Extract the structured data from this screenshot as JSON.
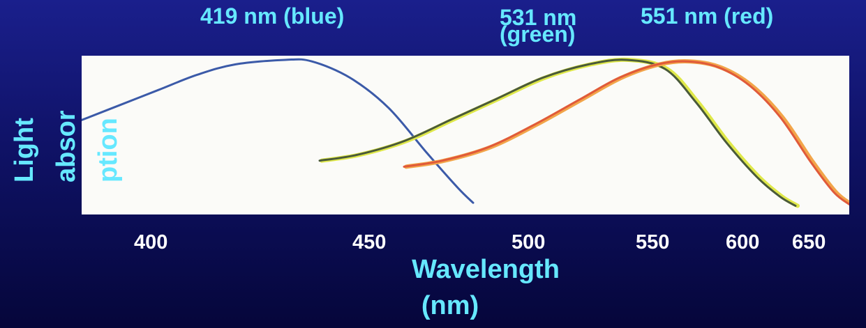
{
  "chart_data": {
    "type": "line",
    "title": "",
    "xlabel_line1": "Wavelength",
    "xlabel_line2": "(nm)",
    "ylabel_line1": "Light",
    "ylabel_line2": "absor",
    "ylabel_line3": "ption",
    "x_ticks": [
      "400",
      "450",
      "500",
      "550",
      "600",
      "650"
    ],
    "peak_labels": {
      "blue": "419 nm (blue)",
      "green_line1": "531 nm",
      "green_line2": "(green)",
      "red": "551 nm (red)"
    },
    "series": [
      {
        "color": "#3b5aa8",
        "peak": 419,
        "points": [
          [
            0.0,
            0.6
          ],
          [
            0.05,
            0.7
          ],
          [
            0.1,
            0.8
          ],
          [
            0.15,
            0.9
          ],
          [
            0.2,
            0.97
          ],
          [
            0.265,
            1.0
          ],
          [
            0.3,
            0.99
          ],
          [
            0.35,
            0.88
          ],
          [
            0.4,
            0.68
          ],
          [
            0.45,
            0.38
          ],
          [
            0.49,
            0.15
          ],
          [
            0.51,
            0.05
          ]
        ]
      },
      {
        "color": "#4a5a3a",
        "peak": 531,
        "points": [
          [
            0.31,
            0.33
          ],
          [
            0.36,
            0.37
          ],
          [
            0.42,
            0.46
          ],
          [
            0.48,
            0.6
          ],
          [
            0.54,
            0.74
          ],
          [
            0.6,
            0.88
          ],
          [
            0.66,
            0.97
          ],
          [
            0.71,
            1.0
          ],
          [
            0.76,
            0.94
          ],
          [
            0.8,
            0.72
          ],
          [
            0.84,
            0.45
          ],
          [
            0.88,
            0.22
          ],
          [
            0.91,
            0.09
          ],
          [
            0.93,
            0.03
          ]
        ],
        "highlight": "#dfe84a"
      },
      {
        "color": "#e05a3a",
        "peak": 551,
        "points": [
          [
            0.42,
            0.29
          ],
          [
            0.47,
            0.33
          ],
          [
            0.53,
            0.42
          ],
          [
            0.59,
            0.57
          ],
          [
            0.65,
            0.74
          ],
          [
            0.7,
            0.88
          ],
          [
            0.75,
            0.97
          ],
          [
            0.79,
            0.99
          ],
          [
            0.83,
            0.95
          ],
          [
            0.87,
            0.83
          ],
          [
            0.91,
            0.62
          ],
          [
            0.95,
            0.32
          ],
          [
            0.98,
            0.12
          ],
          [
            1.0,
            0.04
          ]
        ],
        "highlight": "#f2a54a"
      }
    ]
  }
}
